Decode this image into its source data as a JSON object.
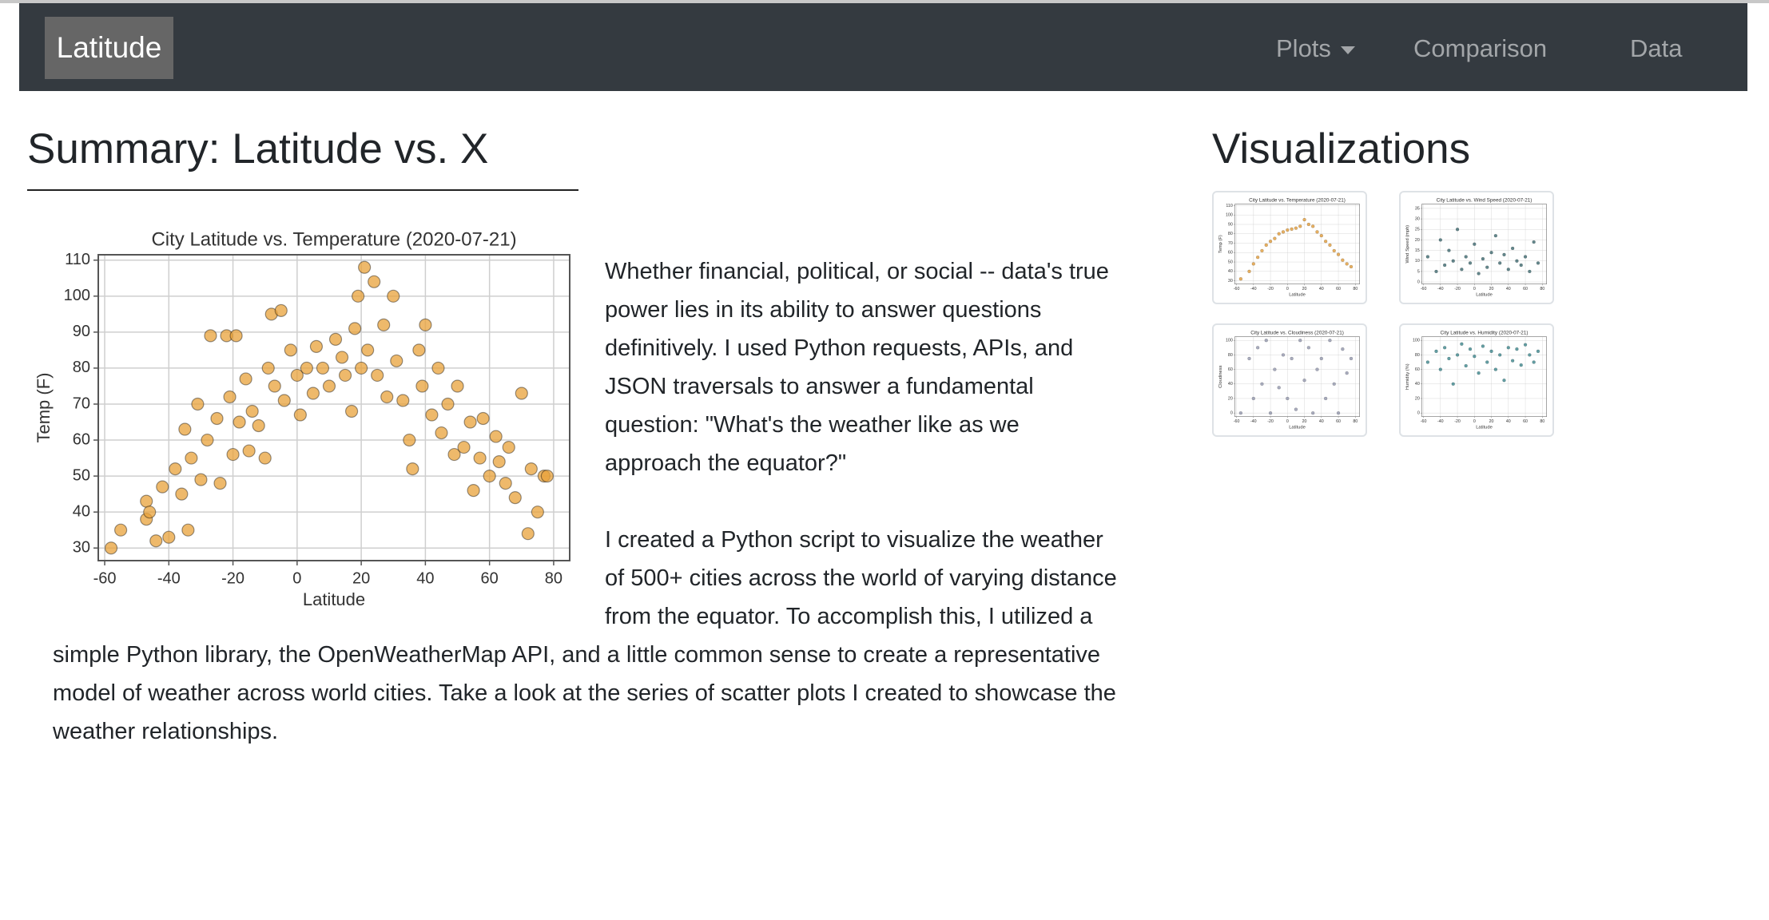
{
  "navbar": {
    "brand": "Latitude",
    "items": [
      "Plots",
      "Comparison",
      "Data"
    ]
  },
  "summary": {
    "heading": "Summary: Latitude vs. X",
    "paragraphs": [
      "Whether financial, political, or social -- data's true power lies in its ability to answer questions definitively. I used Python requests, APIs, and JSON traversals to answer a fundamental question: \"What's the weather like as we approach the equator?\"",
      "I created a Python script to visualize the weather of 500+ cities across the world of varying distance from the equator. To accomplish this, I utilized a simple Python library, the OpenWeatherMap API, and a little common sense to create a representative model of weather across world cities. Take a look at the series of scatter plots I created to showcase the weather relationships."
    ]
  },
  "chart_data": {
    "type": "scatter",
    "title": "City Latitude vs. Temperature (2020-07-21)",
    "x_label": "Latitude",
    "y_label": "Temp (F)",
    "color": "#e8a13a",
    "grid": true,
    "x": [
      -58,
      -55,
      -47,
      -47,
      -46,
      -44,
      -42,
      -40,
      -38,
      -36,
      -35,
      -34,
      -33,
      -31,
      -30,
      -28,
      -27,
      -25,
      -24,
      -22,
      -21,
      -20,
      -19,
      -18,
      -16,
      -15,
      -14,
      -12,
      -10,
      -9,
      -8,
      -7,
      -5,
      -4,
      -2,
      0,
      1,
      3,
      5,
      6,
      8,
      10,
      12,
      14,
      15,
      17,
      18,
      19,
      20,
      21,
      22,
      24,
      25,
      27,
      28,
      30,
      31,
      33,
      35,
      36,
      38,
      39,
      40,
      42,
      44,
      45,
      47,
      49,
      50,
      52,
      54,
      55,
      57,
      58,
      60,
      62,
      63,
      65,
      66,
      68,
      70,
      72,
      73,
      75,
      77,
      78
    ],
    "values": [
      30,
      35,
      43,
      38,
      40,
      32,
      47,
      33,
      52,
      45,
      63,
      35,
      55,
      70,
      49,
      60,
      89,
      66,
      48,
      89,
      72,
      56,
      89,
      65,
      77,
      57,
      68,
      64,
      55,
      80,
      95,
      75,
      96,
      71,
      85,
      78,
      67,
      80,
      73,
      86,
      80,
      75,
      88,
      83,
      78,
      68,
      91,
      100,
      80,
      108,
      85,
      104,
      78,
      92,
      72,
      100,
      82,
      71,
      60,
      52,
      85,
      75,
      92,
      67,
      80,
      62,
      70,
      56,
      75,
      58,
      65,
      46,
      55,
      66,
      50,
      61,
      54,
      48,
      58,
      44,
      73,
      34,
      52,
      40,
      50,
      50
    ],
    "xlim": [
      -62,
      85
    ],
    "ylim": [
      26.5,
      111.5
    ],
    "xticks": [
      -60,
      -40,
      -20,
      0,
      20,
      40,
      60,
      80
    ],
    "yticks": [
      30,
      40,
      50,
      60,
      70,
      80,
      90,
      100,
      110
    ]
  },
  "visualizations": {
    "heading": "Visualizations",
    "thumbnails": [
      {
        "type": "scatter",
        "title": "City Latitude vs. Temperature (2020-07-21)",
        "x_label": "Latitude",
        "y_label": "Temp (F)",
        "color": "#e0962c",
        "grid": true,
        "x": [
          -55,
          -45,
          -40,
          -35,
          -30,
          -25,
          -20,
          -15,
          -10,
          -5,
          0,
          5,
          10,
          15,
          20,
          25,
          30,
          35,
          40,
          45,
          50,
          55,
          60,
          65,
          70,
          75
        ],
        "values": [
          32,
          40,
          48,
          55,
          62,
          68,
          72,
          75,
          80,
          82,
          84,
          85,
          86,
          88,
          95,
          90,
          88,
          82,
          78,
          72,
          68,
          62,
          58,
          52,
          48,
          45
        ],
        "xlim": [
          -62,
          85
        ],
        "ylim": [
          26.5,
          111.5
        ],
        "xticks": [
          -60,
          -40,
          -20,
          0,
          20,
          40,
          60,
          80
        ],
        "yticks": [
          30,
          40,
          50,
          60,
          70,
          80,
          90,
          100,
          110
        ]
      },
      {
        "type": "scatter",
        "title": "City Latitude vs. Wind Speed (2020-07-21)",
        "x_label": "Latitude",
        "y_label": "Wind Speed (mph)",
        "color": "#2f5f66",
        "grid": true,
        "x": [
          -55,
          -45,
          -40,
          -35,
          -30,
          -25,
          -20,
          -15,
          -10,
          -5,
          0,
          5,
          10,
          15,
          20,
          25,
          30,
          35,
          40,
          45,
          50,
          55,
          60,
          65,
          70,
          75
        ],
        "values": [
          12,
          5,
          20,
          8,
          15,
          10,
          25,
          6,
          12,
          9,
          18,
          4,
          11,
          7,
          14,
          22,
          9,
          13,
          6,
          16,
          10,
          8,
          12,
          5,
          19,
          9
        ],
        "xlim": [
          -62,
          85
        ],
        "ylim": [
          -1,
          37
        ],
        "xticks": [
          -60,
          -40,
          -20,
          0,
          20,
          40,
          60,
          80
        ],
        "yticks": [
          0,
          5,
          10,
          15,
          20,
          25,
          30,
          35
        ]
      },
      {
        "type": "scatter",
        "title": "City Latitude vs. Cloudiness (2020-07-21)",
        "x_label": "Latitude",
        "y_label": "Cloudiness",
        "color": "#8c90a8",
        "grid": true,
        "x": [
          -55,
          -45,
          -40,
          -35,
          -30,
          -25,
          -20,
          -15,
          -10,
          -5,
          0,
          5,
          10,
          15,
          20,
          25,
          30,
          35,
          40,
          45,
          50,
          55,
          60,
          65,
          70,
          75
        ],
        "values": [
          0,
          75,
          20,
          90,
          40,
          100,
          0,
          60,
          35,
          80,
          20,
          75,
          5,
          100,
          45,
          90,
          0,
          60,
          75,
          20,
          100,
          40,
          0,
          88,
          55,
          75
        ],
        "xlim": [
          -62,
          85
        ],
        "ylim": [
          -5,
          105
        ],
        "xticks": [
          -60,
          -40,
          -20,
          0,
          20,
          40,
          60,
          80
        ],
        "yticks": [
          0,
          20,
          40,
          60,
          80,
          100
        ]
      },
      {
        "type": "scatter",
        "title": "City Latitude vs. Humidity (2020-07-21)",
        "x_label": "Latitude",
        "y_label": "Humidity (%)",
        "color": "#2f7f86",
        "grid": true,
        "x": [
          -55,
          -45,
          -40,
          -35,
          -30,
          -25,
          -20,
          -15,
          -10,
          -5,
          0,
          5,
          10,
          15,
          20,
          25,
          30,
          35,
          40,
          45,
          50,
          55,
          60,
          65,
          70,
          75
        ],
        "values": [
          70,
          85,
          60,
          90,
          75,
          40,
          80,
          95,
          65,
          88,
          78,
          55,
          92,
          70,
          85,
          60,
          80,
          45,
          90,
          72,
          88,
          66,
          94,
          80,
          70,
          85
        ],
        "xlim": [
          -62,
          85
        ],
        "ylim": [
          -5,
          105
        ],
        "xticks": [
          -60,
          -40,
          -20,
          0,
          20,
          40,
          60,
          80
        ],
        "yticks": [
          0,
          20,
          40,
          60,
          80,
          100
        ]
      }
    ]
  }
}
